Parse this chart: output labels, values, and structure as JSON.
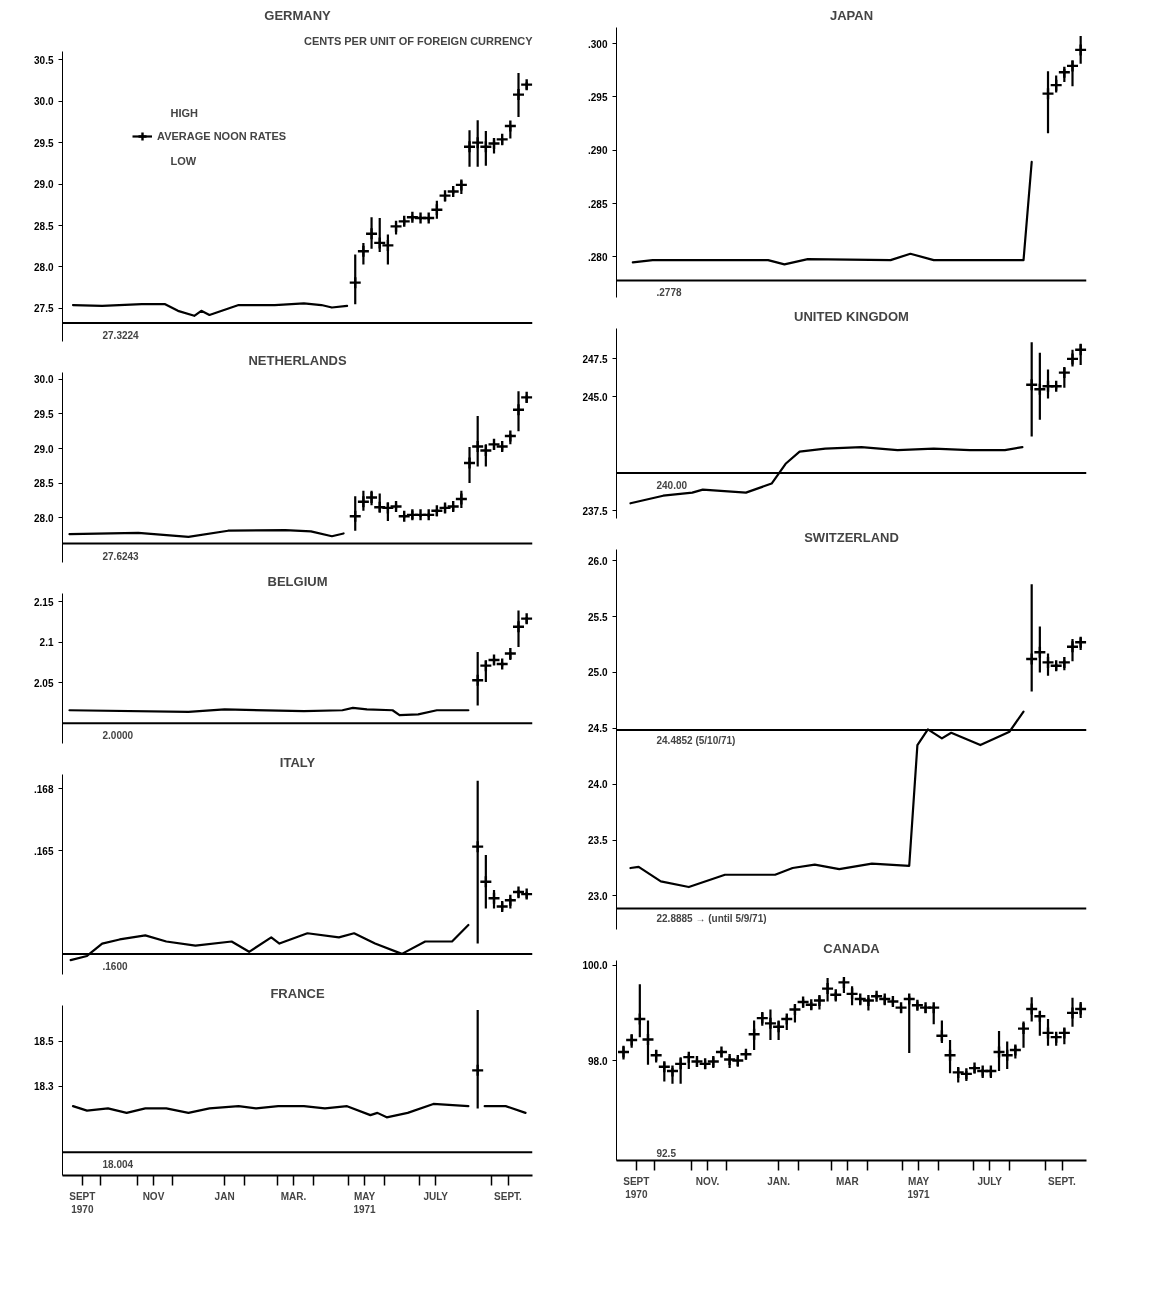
{
  "chart_data": [
    {
      "type": "line",
      "title": "GERMANY",
      "subtitle": "CENTS PER UNIT OF FOREIGN CURRENCY",
      "xlim": [
        "1970-08-29",
        "1971-10-06"
      ],
      "ylim": [
        27.1,
        30.6
      ],
      "yticks": [
        {
          "value": 27.5,
          "label": "27.5"
        },
        {
          "value": 28.0,
          "label": "28.0"
        },
        {
          "value": 28.5,
          "label": "28.5"
        },
        {
          "value": 29.0,
          "label": "29.0"
        },
        {
          "value": 29.5,
          "label": "29.5"
        },
        {
          "value": 30.0,
          "label": "30.0"
        },
        {
          "value": 30.5,
          "label": "30.5"
        }
      ],
      "tick_labels": "y",
      "legend": "top left",
      "annotations": [
        "HIGH",
        "LOW"
      ],
      "ref_lines": [
        {
          "axis": "y",
          "value": 27.3224,
          "label": "27.3224"
        }
      ],
      "series": [
        {
          "color": "#000000",
          "x": [
            "1970-09-07",
            "1970-10-02",
            "1970-11-05",
            "1970-11-25",
            "1970-12-06",
            "1970-12-20",
            "1970-12-26",
            "1971-01-02",
            "1971-01-27",
            "1971-02-27",
            "1971-03-24",
            "1971-04-08",
            "1971-04-17",
            "1971-04-30"
          ],
          "values": [
            27.54,
            27.53,
            27.55,
            27.55,
            27.47,
            27.41,
            27.47,
            27.42,
            27.54,
            27.54,
            27.56,
            27.54,
            27.51,
            27.53
          ]
        },
        {
          "type": "scatter",
          "name": "AVERAGE NOON RATES",
          "marker": "cross",
          "color": "#000000",
          "x": [
            "1971-05-07",
            "1971-05-14",
            "1971-05-21",
            "1971-05-28",
            "1971-06-04",
            "1971-06-11",
            "1971-06-18",
            "1971-06-25",
            "1971-07-02",
            "1971-07-09",
            "1971-07-16",
            "1971-07-23",
            "1971-07-30",
            "1971-08-06",
            "1971-08-13",
            "1971-08-20",
            "1971-08-27",
            "1971-09-03",
            "1971-09-10",
            "1971-09-17",
            "1971-09-24",
            "1971-10-01"
          ],
          "values": [
            27.81,
            28.19,
            28.4,
            28.29,
            28.26,
            28.49,
            28.55,
            28.6,
            28.59,
            28.59,
            28.69,
            28.86,
            28.91,
            28.99,
            29.45,
            29.5,
            29.45,
            29.49,
            29.54,
            29.7,
            30.08,
            30.2
          ],
          "errors": [
            [
              27.55,
              28.15
            ],
            [
              28.03,
              28.29
            ],
            [
              28.22,
              28.6
            ],
            [
              28.18,
              28.59
            ],
            [
              28.03,
              28.39
            ],
            [
              28.39,
              28.51
            ],
            [
              28.51,
              28.58
            ],
            [
              28.56,
              28.62
            ],
            [
              28.57,
              28.61
            ],
            [
              28.56,
              28.6
            ],
            [
              28.58,
              28.8
            ],
            [
              28.79,
              28.88
            ],
            [
              28.88,
              28.93
            ],
            [
              28.88,
              29.04
            ],
            [
              29.21,
              29.65
            ],
            [
              29.21,
              29.77
            ],
            [
              29.22,
              29.64
            ],
            [
              29.37,
              29.53
            ],
            [
              29.47,
              29.55
            ],
            [
              29.55,
              29.71
            ],
            [
              29.81,
              30.34
            ],
            [
              30.14,
              30.23
            ]
          ]
        }
      ]
    },
    {
      "type": "line",
      "title": "NETHERLANDS",
      "xlim": [
        "1970-08-29",
        "1971-10-06"
      ],
      "ylim": [
        27.35,
        30.1
      ],
      "yticks": [
        {
          "value": 28.0,
          "label": "28.0"
        },
        {
          "value": 28.5,
          "label": "28.5"
        },
        {
          "value": 29.0,
          "label": "29.0"
        },
        {
          "value": 29.5,
          "label": "29.5"
        },
        {
          "value": 30.0,
          "label": "30.0"
        }
      ],
      "tick_labels": "y",
      "ref_lines": [
        {
          "axis": "y",
          "value": 27.6243,
          "label": "27.6243"
        }
      ],
      "series": [
        {
          "color": "#000000",
          "x": [
            "1970-09-04",
            "1970-11-02",
            "1970-12-15",
            "1971-01-18",
            "1971-03-08",
            "1971-03-30",
            "1971-04-17",
            "1971-04-27"
          ],
          "values": [
            27.76,
            27.78,
            27.72,
            27.81,
            27.82,
            27.8,
            27.73,
            27.77
          ]
        },
        {
          "type": "scatter",
          "marker": "cross",
          "color": "#000000",
          "x": [
            "1971-05-07",
            "1971-05-14",
            "1971-05-21",
            "1971-05-28",
            "1971-06-04",
            "1971-06-11",
            "1971-06-18",
            "1971-06-25",
            "1971-07-02",
            "1971-07-09",
            "1971-07-16",
            "1971-07-23",
            "1971-07-30",
            "1971-08-06",
            "1971-08-13",
            "1971-08-20",
            "1971-08-27",
            "1971-09-03",
            "1971-09-10",
            "1971-09-17",
            "1971-09-24",
            "1971-10-01"
          ],
          "values": [
            28.02,
            28.23,
            28.29,
            28.15,
            28.14,
            28.16,
            28.02,
            28.04,
            28.04,
            28.04,
            28.1,
            28.14,
            28.16,
            28.27,
            28.79,
            29.03,
            28.97,
            29.06,
            29.03,
            29.18,
            29.56,
            29.74
          ],
          "errors": [
            [
              27.81,
              28.31
            ],
            [
              28.1,
              28.39
            ],
            [
              28.18,
              28.39
            ],
            [
              28.08,
              28.35
            ],
            [
              27.95,
              28.22
            ],
            [
              28.12,
              28.2
            ],
            [
              27.99,
              28.04
            ],
            [
              27.98,
              28.1
            ],
            [
              28.01,
              28.05
            ],
            [
              28.01,
              28.06
            ],
            [
              28.02,
              28.12
            ],
            [
              28.07,
              28.19
            ],
            [
              28.1,
              28.18
            ],
            [
              28.14,
              28.39
            ],
            [
              28.5,
              29.02
            ],
            [
              28.74,
              29.47
            ],
            [
              28.74,
              29.06
            ],
            [
              28.98,
              29.08
            ],
            [
              28.97,
              29.04
            ],
            [
              29.06,
              29.21
            ],
            [
              29.25,
              29.83
            ],
            [
              29.66,
              29.77
            ]
          ]
        }
      ]
    },
    {
      "type": "line",
      "title": "BELGIUM",
      "xlim": [
        "1970-08-29",
        "1971-10-06"
      ],
      "ylim": [
        1.975,
        2.16
      ],
      "yticks": [
        2.05,
        2.1,
        2.15
      ],
      "tick_labels": "y",
      "ref_lines": [
        {
          "axis": "y",
          "value": 2.0,
          "label": "2.0000"
        }
      ],
      "series": [
        {
          "color": "#000000",
          "x": [
            "1970-09-04",
            "1970-12-15",
            "1971-01-15",
            "1971-03-24",
            "1971-04-26",
            "1971-05-05",
            "1971-05-17",
            "1971-06-08",
            "1971-06-14",
            "1971-06-30",
            "1971-07-16",
            "1971-08-12"
          ],
          "values": [
            2.016,
            2.014,
            2.017,
            2.015,
            2.016,
            2.019,
            2.017,
            2.016,
            2.01,
            2.011,
            2.016,
            2.016
          ]
        },
        {
          "type": "scatter",
          "marker": "cross",
          "color": "#000000",
          "x": [
            "1971-08-20",
            "1971-08-27",
            "1971-09-03",
            "1971-09-10",
            "1971-09-17",
            "1971-09-24",
            "1971-10-01"
          ],
          "values": [
            2.053,
            2.071,
            2.078,
            2.073,
            2.086,
            2.119,
            2.129
          ],
          "errors": [
            [
              2.022,
              2.088
            ],
            [
              2.051,
              2.077
            ],
            [
              2.072,
              2.08
            ],
            [
              2.07,
              2.075
            ],
            [
              2.078,
              2.088
            ],
            [
              2.094,
              2.139
            ],
            [
              2.123,
              2.131
            ]
          ]
        }
      ]
    },
    {
      "type": "line",
      "title": "ITALY",
      "xlim": [
        "1970-08-29",
        "1971-10-06"
      ],
      "ylim": [
        0.159,
        0.1687
      ],
      "yticks": [
        {
          "value": 0.165,
          "label": ".165"
        },
        {
          "value": 0.168,
          "label": ".168"
        }
      ],
      "tick_labels": "y",
      "ref_lines": [
        {
          "axis": "y",
          "value": 0.16,
          "label": ".1600"
        }
      ],
      "series": [
        {
          "color": "#000000",
          "x": [
            "1970-09-05",
            "1970-09-19",
            "1970-10-02",
            "1970-10-17",
            "1970-11-08",
            "1970-11-26",
            "1970-12-21",
            "1971-01-21",
            "1971-02-05",
            "1971-02-24",
            "1971-03-03",
            "1971-03-27",
            "1971-04-23",
            "1971-05-06",
            "1971-05-24",
            "1971-06-16",
            "1971-07-06",
            "1971-07-29",
            "1971-08-12"
          ],
          "values": [
            0.1597,
            0.1599,
            0.1605,
            0.1607,
            0.1609,
            0.1606,
            0.1604,
            0.1606,
            0.1601,
            0.1608,
            0.1605,
            0.161,
            0.1608,
            0.161,
            0.1605,
            0.16,
            0.1606,
            0.1606,
            0.1614
          ]
        },
        {
          "type": "scatter",
          "marker": "cross",
          "color": "#000000",
          "x": [
            "1971-08-20",
            "1971-08-27",
            "1971-09-03",
            "1971-09-10",
            "1971-09-17",
            "1971-09-24",
            "1971-10-01"
          ],
          "values": [
            0.1652,
            0.1635,
            0.1627,
            0.1623,
            0.1626,
            0.163,
            0.1629
          ],
          "errors": [
            [
              0.1605,
              0.1684
            ],
            [
              0.1622,
              0.1648
            ],
            [
              0.1622,
              0.1631
            ],
            [
              0.1621,
              0.1625
            ],
            [
              0.1622,
              0.1627
            ],
            [
              0.1627,
              0.1631
            ],
            [
              0.1627,
              0.163
            ]
          ]
        }
      ]
    },
    {
      "type": "line",
      "title": "FRANCE",
      "xlim": [
        "1970-08-29",
        "1971-10-06"
      ],
      "ylim": [
        17.9,
        18.66
      ],
      "yticks": [
        18.3,
        18.5
      ],
      "xticks": [
        {
          "value": "1970-09-15",
          "label": "SEPT\n1970"
        },
        {
          "value": "1970-10-01",
          "label": null
        },
        {
          "value": "1970-11-01",
          "label": null
        },
        {
          "value": "1970-11-15",
          "label": "NOV"
        },
        {
          "value": "1970-12-01",
          "label": null
        },
        {
          "value": "1971-01-15",
          "label": "JAN"
        },
        {
          "value": "1971-02-01",
          "label": null
        },
        {
          "value": "1971-03-01",
          "label": null
        },
        {
          "value": "1971-03-15",
          "label": "MAR."
        },
        {
          "value": "1971-04-01",
          "label": null
        },
        {
          "value": "1971-05-01",
          "label": null
        },
        {
          "value": "1971-05-15",
          "label": "MAY\n1971"
        },
        {
          "value": "1971-06-01",
          "label": null
        },
        {
          "value": "1971-07-01",
          "label": null
        },
        {
          "value": "1971-07-15",
          "label": "JULY"
        },
        {
          "value": "1971-09-01",
          "label": null
        },
        {
          "value": "1971-09-15",
          "label": "SEPT."
        }
      ],
      "ref_lines": [
        {
          "axis": "y",
          "value": 18.004,
          "label": "18.004"
        }
      ],
      "series": [
        {
          "color": "#000000",
          "x": [
            "1970-09-07",
            "1970-09-19",
            "1970-10-07",
            "1970-10-23",
            "1970-11-08",
            "1970-11-26",
            "1970-12-15",
            "1971-01-02",
            "1971-01-27",
            "1971-02-11",
            "1971-03-02",
            "1971-03-24",
            "1971-04-11",
            "1971-04-30",
            "1971-05-20",
            "1971-05-26",
            "1971-06-03",
            "1971-06-21",
            "1971-07-13",
            "1971-08-12",
            "1971-08-20",
            "1971-08-26",
            "1971-09-13",
            "1971-09-30"
          ],
          "values": [
            18.21,
            18.19,
            18.2,
            18.18,
            18.2,
            18.2,
            18.18,
            18.2,
            18.21,
            18.2,
            18.21,
            18.21,
            18.2,
            18.21,
            18.17,
            18.18,
            18.16,
            18.18,
            18.22,
            18.21,
            null,
            18.21,
            18.21,
            18.18
          ]
        },
        {
          "type": "scatter",
          "marker": "cross",
          "color": "#000000",
          "x": [
            "1971-08-20"
          ],
          "values": [
            18.37
          ],
          "errors": [
            [
              18.2,
              18.64
            ]
          ]
        }
      ]
    },
    {
      "type": "line",
      "title": "JAPAN",
      "xlim": [
        "1970-08-29",
        "1971-10-06"
      ],
      "ylim": [
        0.2762,
        0.3015
      ],
      "yticks": [
        {
          "value": 0.28,
          "label": ".280"
        },
        {
          "value": 0.285,
          "label": ".285"
        },
        {
          "value": 0.29,
          "label": ".290"
        },
        {
          "value": 0.295,
          "label": ".295"
        },
        {
          "value": 0.3,
          "label": ".300"
        }
      ],
      "tick_labels": "y",
      "ref_lines": [
        {
          "axis": "y",
          "value": 0.2778,
          "label": ".2778"
        }
      ],
      "series": [
        {
          "color": "#000000",
          "x": [
            "1970-09-12",
            "1970-09-29",
            "1971-01-06",
            "1971-01-20",
            "1971-02-09",
            "1971-04-21",
            "1971-05-08",
            "1971-05-28",
            "1971-08-13",
            "1971-08-20"
          ],
          "values": [
            0.2795,
            0.2797,
            0.2797,
            0.2793,
            0.2798,
            0.2797,
            0.2803,
            0.2797,
            0.2797,
            0.2889
          ]
        },
        {
          "type": "scatter",
          "marker": "cross",
          "color": "#000000",
          "x": [
            "1971-09-03",
            "1971-09-10",
            "1971-09-17",
            "1971-09-24",
            "1971-10-01"
          ],
          "values": [
            0.2953,
            0.2961,
            0.2973,
            0.2979,
            0.2994
          ],
          "errors": [
            [
              0.2916,
              0.2974
            ],
            [
              0.2954,
              0.297
            ],
            [
              0.2964,
              0.2976
            ],
            [
              0.296,
              0.2984
            ],
            [
              0.2981,
              0.3007
            ]
          ]
        }
      ]
    },
    {
      "type": "line",
      "title": "UNITED KINGDOM",
      "xlim": [
        "1970-08-29",
        "1971-10-06"
      ],
      "ylim": [
        237.0,
        249.5
      ],
      "yticks": [
        {
          "value": 237.5,
          "label": "237.5"
        },
        {
          "value": 245.0,
          "label": "245.0"
        },
        {
          "value": 247.5,
          "label": "247.5"
        }
      ],
      "tick_labels": "y",
      "ref_lines": [
        {
          "axis": "y",
          "value": 240.0,
          "label": "240.00"
        }
      ],
      "series": [
        {
          "color": "#000000",
          "x": [
            "1970-09-10",
            "1970-10-08",
            "1970-11-02",
            "1970-11-11",
            "1970-12-18",
            "1971-01-09",
            "1971-01-21",
            "1971-02-02",
            "1971-02-24",
            "1971-03-27",
            "1971-04-27",
            "1971-05-28",
            "1971-06-28",
            "1971-07-28",
            "1971-08-12"
          ],
          "values": [
            238.0,
            238.5,
            238.7,
            238.9,
            238.7,
            239.3,
            240.6,
            241.4,
            241.6,
            241.7,
            241.5,
            241.6,
            241.5,
            241.5,
            241.7
          ]
        },
        {
          "type": "scatter",
          "marker": "cross",
          "color": "#000000",
          "x": [
            "1971-08-20",
            "1971-08-27",
            "1971-09-03",
            "1971-09-10",
            "1971-09-17",
            "1971-09-24",
            "1971-10-01"
          ],
          "values": [
            245.8,
            245.5,
            245.7,
            245.7,
            246.6,
            247.5,
            248.1
          ],
          "errors": [
            [
              242.4,
              248.6
            ],
            [
              243.5,
              247.9
            ],
            [
              244.9,
              246.8
            ],
            [
              245.5,
              245.8
            ],
            [
              245.6,
              246.9
            ],
            [
              247.0,
              248.1
            ],
            [
              247.1,
              248.5
            ]
          ]
        }
      ]
    },
    {
      "type": "line",
      "title": "SWITZERLAND",
      "xlim": [
        "1970-08-29",
        "1971-10-06"
      ],
      "ylim": [
        22.7,
        26.1
      ],
      "yticks": [
        {
          "value": 23.0,
          "label": "23.0"
        },
        {
          "value": 23.5,
          "label": "23.5"
        },
        {
          "value": 24.0,
          "label": "24.0"
        },
        {
          "value": 24.5,
          "label": "24.5"
        },
        {
          "value": 25.0,
          "label": "25.0"
        },
        {
          "value": 25.5,
          "label": "25.5"
        },
        {
          "value": 26.0,
          "label": "26.0"
        }
      ],
      "tick_labels": "y",
      "ref_lines": [
        {
          "axis": "y",
          "value": 24.4852,
          "label": "24.4852 (5/10/71)"
        },
        {
          "axis": "y",
          "value": 22.8885,
          "label": "22.8885 → (until 5/9/71)"
        }
      ],
      "series": [
        {
          "color": "#000000",
          "x": [
            "1970-09-10",
            "1970-09-17",
            "1970-10-06",
            "1970-10-30",
            "1970-11-30",
            "1970-12-24",
            "1971-01-12",
            "1971-01-27",
            "1971-02-15",
            "1971-03-08",
            "1971-04-05",
            "1971-05-07",
            "1971-05-14",
            "1971-05-23",
            "1971-06-04",
            "1971-06-12",
            "1971-07-07",
            "1971-08-01",
            "1971-08-13"
          ],
          "values": [
            23.25,
            23.26,
            23.13,
            23.08,
            23.19,
            23.19,
            23.19,
            23.25,
            23.28,
            23.24,
            23.29,
            23.27,
            24.35,
            24.49,
            24.41,
            24.46,
            24.35,
            24.47,
            24.65
          ]
        },
        {
          "type": "scatter",
          "marker": "cross",
          "color": "#000000",
          "x": [
            "1971-08-20",
            "1971-08-27",
            "1971-09-03",
            "1971-09-10",
            "1971-09-17",
            "1971-09-24",
            "1971-10-01"
          ],
          "values": [
            25.12,
            25.18,
            25.09,
            25.06,
            25.09,
            25.23,
            25.27
          ],
          "errors": [
            [
              24.83,
              25.79
            ],
            [
              25.0,
              25.41
            ],
            [
              24.97,
              25.17
            ],
            [
              25.02,
              25.08
            ],
            [
              25.02,
              25.11
            ],
            [
              25.1,
              25.3
            ],
            [
              25.2,
              25.31
            ]
          ]
        }
      ]
    },
    {
      "type": "scatter",
      "title": "CANADA",
      "xlim": [
        "1970-08-29",
        "1971-10-06"
      ],
      "ylim": [
        95.9,
        100.1
      ],
      "yticks": [
        {
          "value": 98.0,
          "label": "98.0"
        },
        {
          "value": 100.0,
          "label": "100.0"
        }
      ],
      "xticks": [
        {
          "value": "1970-09-15",
          "label": "SEPT\n1970"
        },
        {
          "value": "1970-10-01",
          "label": null
        },
        {
          "value": "1970-11-01",
          "label": null
        },
        {
          "value": "1970-11-15",
          "label": "NOV."
        },
        {
          "value": "1970-12-01",
          "label": null
        },
        {
          "value": "1971-01-15",
          "label": "JAN."
        },
        {
          "value": "1971-02-01",
          "label": null
        },
        {
          "value": "1971-03-01",
          "label": null
        },
        {
          "value": "1971-03-15",
          "label": "MAR"
        },
        {
          "value": "1971-04-01",
          "label": null
        },
        {
          "value": "1971-05-01",
          "label": null
        },
        {
          "value": "1971-05-15",
          "label": "MAY\n1971"
        },
        {
          "value": "1971-06-01",
          "label": null
        },
        {
          "value": "1971-07-01",
          "label": null
        },
        {
          "value": "1971-07-15",
          "label": "JULY"
        },
        {
          "value": "1971-08-01",
          "label": null
        },
        {
          "value": "1971-09-01",
          "label": null
        },
        {
          "value": "1971-09-15",
          "label": "SEPT."
        }
      ],
      "annotations": [
        "92.5"
      ],
      "marker": "cross",
      "series": [
        {
          "color": "#000000",
          "x": [
            "1970-09-04",
            "1970-09-11",
            "1970-09-18",
            "1970-09-25",
            "1970-10-02",
            "1970-10-09",
            "1970-10-16",
            "1970-10-23",
            "1970-10-30",
            "1970-11-06",
            "1970-11-13",
            "1970-11-20",
            "1970-11-27",
            "1970-12-04",
            "1970-12-11",
            "1970-12-18",
            "1970-12-25",
            "1971-01-01",
            "1971-01-08",
            "1971-01-15",
            "1971-01-22",
            "1971-01-29",
            "1971-02-05",
            "1971-02-12",
            "1971-02-19",
            "1971-02-26",
            "1971-03-05",
            "1971-03-12",
            "1971-03-19",
            "1971-03-26",
            "1971-04-02",
            "1971-04-09",
            "1971-04-16",
            "1971-04-23",
            "1971-04-30",
            "1971-05-07",
            "1971-05-14",
            "1971-05-21",
            "1971-05-28",
            "1971-06-04",
            "1971-06-11",
            "1971-06-18",
            "1971-06-25",
            "1971-07-02",
            "1971-07-09",
            "1971-07-16",
            "1971-07-23",
            "1971-07-30",
            "1971-08-06",
            "1971-08-13",
            "1971-08-20",
            "1971-08-27",
            "1971-09-03",
            "1971-09-10",
            "1971-09-17",
            "1971-09-24",
            "1971-10-01"
          ],
          "values": [
            98.18,
            98.43,
            98.87,
            98.44,
            98.11,
            97.87,
            97.78,
            97.93,
            98.07,
            97.98,
            97.93,
            97.98,
            98.18,
            98.02,
            98.0,
            98.13,
            98.55,
            98.89,
            98.78,
            98.71,
            98.87,
            99.07,
            99.23,
            99.17,
            99.26,
            99.51,
            99.38,
            99.64,
            99.4,
            99.29,
            99.26,
            99.35,
            99.29,
            99.24,
            99.11,
            99.29,
            99.16,
            99.11,
            99.11,
            98.52,
            98.11,
            97.75,
            97.72,
            97.84,
            97.78,
            97.78,
            98.18,
            98.11,
            98.22,
            98.67,
            99.08,
            98.93,
            98.58,
            98.49,
            98.58,
            99.0,
            99.08
          ],
          "errors": [
            [
              98.02,
              98.31
            ],
            [
              98.27,
              98.55
            ],
            [
              98.49,
              99.6
            ],
            [
              97.91,
              98.84
            ],
            [
              97.96,
              98.22
            ],
            [
              97.56,
              97.96
            ],
            [
              97.51,
              97.84
            ],
            [
              97.51,
              98.07
            ],
            [
              97.82,
              98.13
            ],
            [
              97.87,
              98.04
            ],
            [
              97.82,
              98.0
            ],
            [
              97.84,
              98.07
            ],
            [
              98.07,
              98.22
            ],
            [
              97.84,
              98.09
            ],
            [
              97.87,
              98.07
            ],
            [
              98.02,
              98.2
            ],
            [
              98.22,
              98.84
            ],
            [
              98.73,
              99.02
            ],
            [
              98.43,
              99.07
            ],
            [
              98.43,
              98.84
            ],
            [
              98.64,
              98.93
            ],
            [
              98.8,
              99.16
            ],
            [
              99.11,
              99.29
            ],
            [
              99.07,
              99.23
            ],
            [
              99.07,
              99.35
            ],
            [
              99.24,
              99.73
            ],
            [
              99.24,
              99.44
            ],
            [
              99.42,
              99.69
            ],
            [
              99.16,
              99.56
            ],
            [
              99.16,
              99.33
            ],
            [
              99.05,
              99.32
            ],
            [
              99.29,
              99.4
            ],
            [
              99.16,
              99.35
            ],
            [
              99.16,
              99.29
            ],
            [
              99.0,
              99.16
            ],
            [
              98.16,
              99.35
            ],
            [
              99.07,
              99.24
            ],
            [
              99.0,
              99.16
            ],
            [
              98.76,
              99.16
            ],
            [
              98.37,
              98.84
            ],
            [
              97.73,
              98.43
            ],
            [
              97.54,
              97.84
            ],
            [
              97.57,
              97.78
            ],
            [
              97.73,
              97.88
            ],
            [
              97.63,
              97.82
            ],
            [
              97.63,
              97.82
            ],
            [
              97.78,
              98.62
            ],
            [
              97.82,
              98.4
            ],
            [
              98.04,
              98.31
            ],
            [
              98.27,
              98.82
            ],
            [
              98.82,
              99.33
            ],
            [
              98.52,
              99.02
            ],
            [
              98.31,
              98.87
            ],
            [
              98.31,
              98.55
            ],
            [
              98.34,
              98.67
            ],
            [
              98.71,
              99.32
            ],
            [
              98.89,
              99.23
            ]
          ]
        }
      ]
    }
  ]
}
